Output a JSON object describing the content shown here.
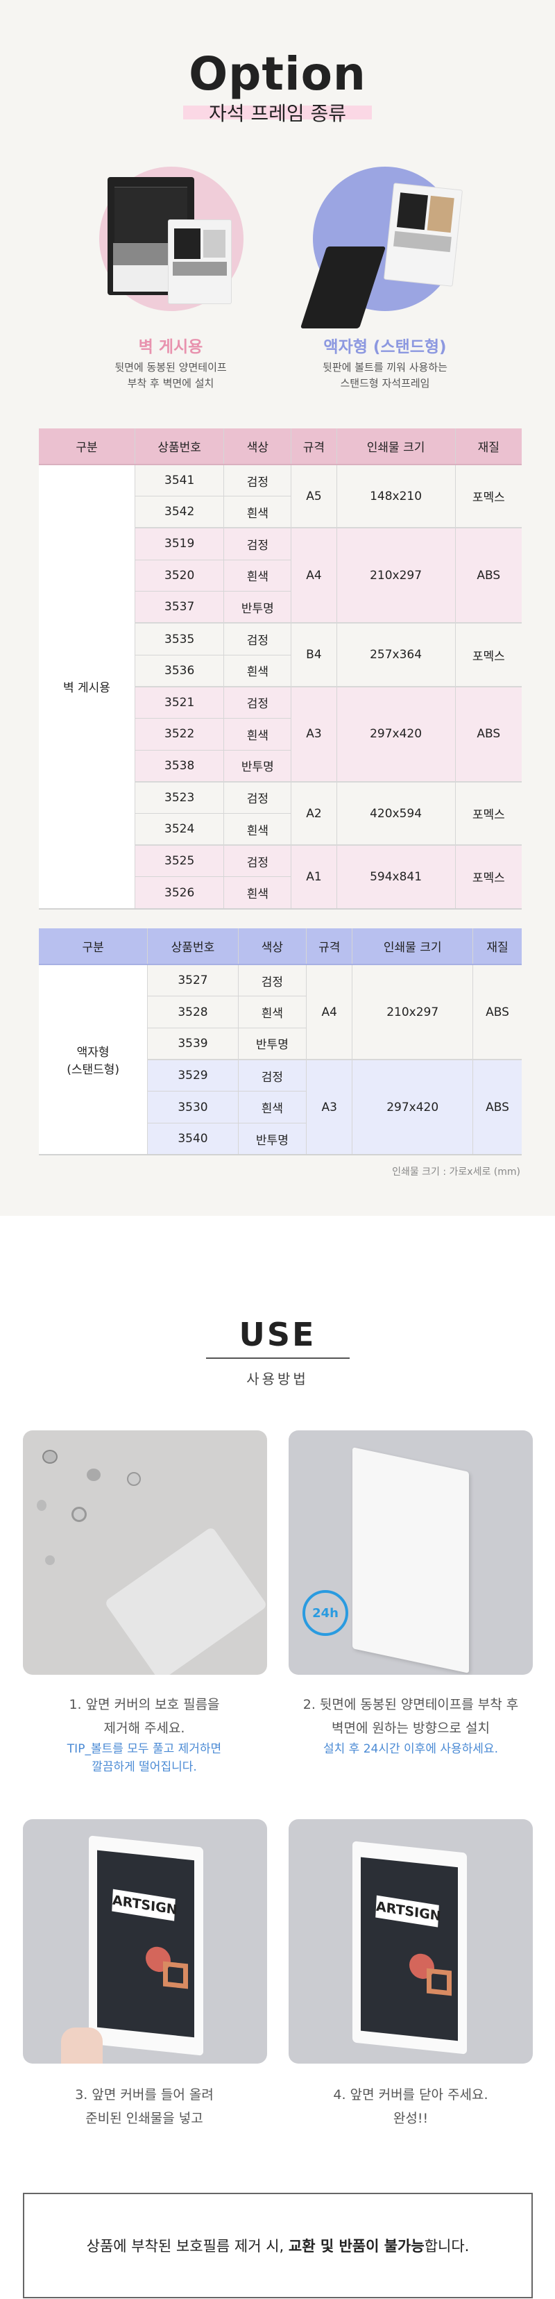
{
  "option": {
    "title": "Option",
    "subtitle": "자석 프레임 종류",
    "types": [
      {
        "label": "벽 게시용",
        "desc_line1": "뒷면에 동봉된 양면테이프",
        "desc_line2": "부착 후 벽면에 설치",
        "color": "#e892ae",
        "circle_color": "#f0cdd9"
      },
      {
        "label": "액자형 (스탠드형)",
        "desc_line1": "뒷판에 볼트를 끼워 사용하는",
        "desc_line2": "스탠드형 자석프레임",
        "color": "#8c98e0",
        "circle_color": "#9ba5e2"
      }
    ]
  },
  "table_headers": [
    "구분",
    "상품번호",
    "색상",
    "규격",
    "인쇄물 크기",
    "재질"
  ],
  "wall_table": {
    "category": "벽 게시용",
    "groups": [
      {
        "size": "A5",
        "print_size": "148x210",
        "material": "포멕스",
        "items": [
          {
            "code": "3541",
            "color": "검정"
          },
          {
            "code": "3542",
            "color": "흰색"
          }
        ]
      },
      {
        "size": "A4",
        "print_size": "210x297",
        "material": "ABS",
        "items": [
          {
            "code": "3519",
            "color": "검정"
          },
          {
            "code": "3520",
            "color": "흰색"
          },
          {
            "code": "3537",
            "color": "반투명"
          }
        ]
      },
      {
        "size": "B4",
        "print_size": "257x364",
        "material": "포멕스",
        "items": [
          {
            "code": "3535",
            "color": "검정"
          },
          {
            "code": "3536",
            "color": "흰색"
          }
        ]
      },
      {
        "size": "A3",
        "print_size": "297x420",
        "material": "ABS",
        "items": [
          {
            "code": "3521",
            "color": "검정"
          },
          {
            "code": "3522",
            "color": "흰색"
          },
          {
            "code": "3538",
            "color": "반투명"
          }
        ]
      },
      {
        "size": "A2",
        "print_size": "420x594",
        "material": "포멕스",
        "items": [
          {
            "code": "3523",
            "color": "검정"
          },
          {
            "code": "3524",
            "color": "흰색"
          }
        ]
      },
      {
        "size": "A1",
        "print_size": "594x841",
        "material": "포멕스",
        "items": [
          {
            "code": "3525",
            "color": "검정"
          },
          {
            "code": "3526",
            "color": "흰색"
          }
        ]
      }
    ]
  },
  "stand_table": {
    "category_line1": "액자형",
    "category_line2": "(스탠드형)",
    "groups": [
      {
        "size": "A4",
        "print_size": "210x297",
        "material": "ABS",
        "items": [
          {
            "code": "3527",
            "color": "검정"
          },
          {
            "code": "3528",
            "color": "흰색"
          },
          {
            "code": "3539",
            "color": "반투명"
          }
        ]
      },
      {
        "size": "A3",
        "print_size": "297x420",
        "material": "ABS",
        "items": [
          {
            "code": "3529",
            "color": "검정"
          },
          {
            "code": "3530",
            "color": "흰색"
          },
          {
            "code": "3540",
            "color": "반투명"
          }
        ]
      }
    ]
  },
  "size_note": "인쇄물 크기 : 가로x세로 (mm)",
  "use": {
    "title": "USE",
    "subtitle": "사용방법",
    "badge_24h": "24h",
    "poster_text": "ARTSIGN",
    "steps": [
      {
        "line1": "1. 앞면 커버의 보호 필름을",
        "line2": "제거해 주세요.",
        "tip1": "TIP_볼트를 모두 풀고 제거하면",
        "tip2": "깔끔하게 떨어집니다."
      },
      {
        "line1": "2. 뒷면에 동봉된 양면테이프를 부착 후",
        "line2": "벽면에 원하는 방향으로 설치",
        "tip1": "설치 후 24시간 이후에 사용하세요."
      },
      {
        "line1": "3. 앞면 커버를 들어 올려",
        "line2": "준비된 인쇄물을 넣고"
      },
      {
        "line1": "4. 앞면 커버를 닫아 주세요.",
        "line2": "완성!!"
      }
    ]
  },
  "notice": {
    "text_before": "상품에 부착된 보호필름 제거 시, ",
    "text_bold": "교환 및 반품이 불가능",
    "text_after": "합니다."
  },
  "colors": {
    "pink_header": "#ebc1d0",
    "pink_row": "#f8e8ef",
    "blue_header": "#b8c0ef",
    "blue_row": "#e8ebfb",
    "tip_blue": "#4a8ad4"
  }
}
